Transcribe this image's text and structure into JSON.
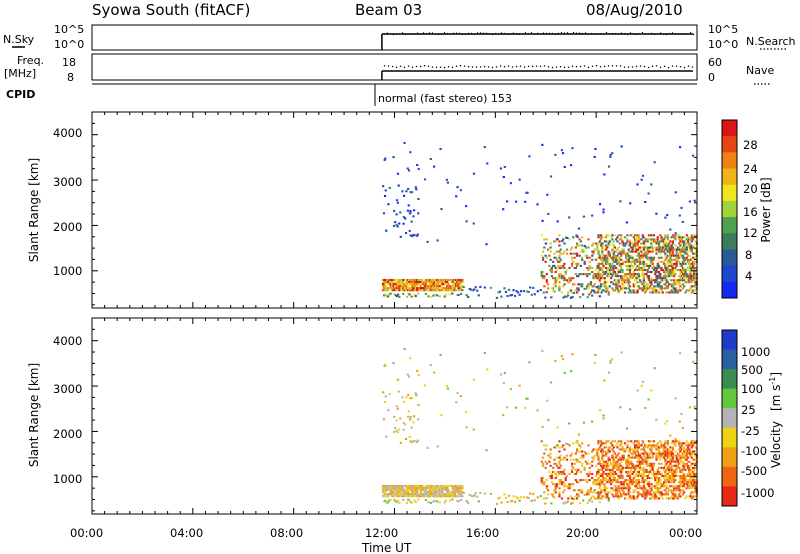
{
  "header": {
    "station": "Syowa South (fitACF)",
    "beam": "Beam 03",
    "date": "08/Aug/2010"
  },
  "param_panels": {
    "nsky_label": "N.Sky",
    "nsky_ticks": [
      "10^5",
      "10^0"
    ],
    "nsearch_label": "N.Search",
    "nsearch_ticks": [
      "10^5",
      "10^0"
    ],
    "freq_label_line1": "Freq.",
    "freq_label_line2": "[MHz]",
    "freq_ticks": [
      "18",
      "8"
    ],
    "nave_label": "Nave",
    "nave_ticks": [
      "60",
      "0"
    ],
    "cpid_label": "CPID",
    "cpid_text": "normal (fast stereo) 153"
  },
  "chart_data": [
    {
      "type": "heatmap",
      "title": "",
      "xlabel": "Time UT",
      "ylabel": "Slant Range [km]",
      "x_ticks": [
        "00:00",
        "04:00",
        "08:00",
        "12:00",
        "16:00",
        "20:00",
        "00:00"
      ],
      "xlim_hours": [
        0,
        24
      ],
      "y_ticks": [
        "1000",
        "2000",
        "3000",
        "4000"
      ],
      "ylim": [
        180,
        4500
      ],
      "colorbar": {
        "label": "Power [dB]",
        "ticks": [
          "4",
          "8",
          "12",
          "16",
          "20",
          "24",
          "28"
        ],
        "colors": [
          "#1428f0",
          "#1e46d2",
          "#285a9a",
          "#3c7c5a",
          "#50a050",
          "#a0d23c",
          "#f0e61e",
          "#f0b414",
          "#f08214",
          "#e64614",
          "#dc1414"
        ]
      },
      "features": [
        {
          "name": "data start",
          "x_hour": 11.5
        },
        {
          "name": "near-range band",
          "x_hours": [
            11.5,
            14.7
          ],
          "y_km": [
            550,
            800
          ],
          "level": "high"
        },
        {
          "name": "evening echo region",
          "x_hours": [
            17.8,
            24
          ],
          "y_km": [
            500,
            1800
          ],
          "level": "high"
        }
      ]
    },
    {
      "type": "heatmap",
      "title": "",
      "xlabel": "Time UT",
      "ylabel": "Slant Range [km]",
      "x_ticks": [
        "00:00",
        "04:00",
        "08:00",
        "12:00",
        "16:00",
        "20:00",
        "00:00"
      ],
      "xlim_hours": [
        0,
        24
      ],
      "y_ticks": [
        "1000",
        "2000",
        "3000",
        "4000"
      ],
      "ylim": [
        180,
        4500
      ],
      "colorbar": {
        "label": "Velocity",
        "unit_label": "[m s",
        "unit_exp": "-1",
        "unit_close": "]",
        "ticks": [
          "1000",
          "500",
          "100",
          "25",
          "-25",
          "-100",
          "-500",
          "-1000"
        ],
        "colors": [
          "#1e3cc8",
          "#2860a0",
          "#3c8c50",
          "#64c83c",
          "#b4b4b4",
          "#f0d214",
          "#f0a014",
          "#f06414",
          "#e62814"
        ]
      },
      "features": [
        {
          "name": "near-range band",
          "x_hours": [
            11.5,
            14.7
          ],
          "y_km": [
            550,
            800
          ],
          "level": "low velocity"
        },
        {
          "name": "evening echo region",
          "x_hours": [
            17.8,
            24
          ],
          "y_km": [
            500,
            1800
          ],
          "level": "negative velocity"
        }
      ]
    }
  ]
}
